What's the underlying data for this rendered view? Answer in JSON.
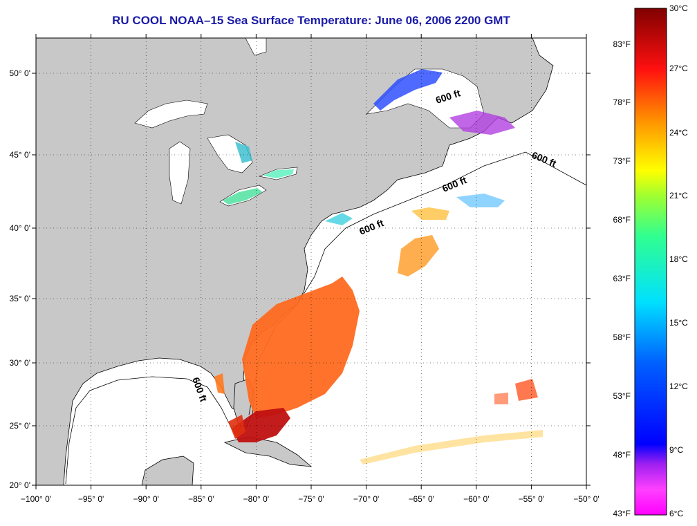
{
  "title": "RU COOL  NOAA–15  Sea Surface Temperature:  June 06, 2006 2200 GMT",
  "map": {
    "lon_ticks": [
      "−100° 0'",
      "−95° 0'",
      "−90° 0'",
      "−85° 0'",
      "−80° 0'",
      "−75° 0'",
      "−70° 0'",
      "−65° 0'",
      "−60° 0'",
      "−55° 0'",
      "−50° 0'"
    ],
    "lat_ticks": [
      "20° 0'",
      "25° 0'",
      "30° 0'",
      "35° 0'",
      "40° 0'",
      "45° 0'",
      "50° 0'"
    ],
    "lon_values": [
      -100,
      -95,
      -90,
      -85,
      -80,
      -75,
      -70,
      -65,
      -60,
      -55,
      -50
    ],
    "lat_values": [
      20,
      25,
      30,
      35,
      40,
      45,
      50
    ],
    "isobath_labels": [
      "600 ft",
      "600 ft",
      "600 ft",
      "600 ft",
      "600 ft"
    ],
    "land_color": "#c8c8c8",
    "ocean_color": "#ffffff"
  },
  "colorbar": {
    "celsius_ticks": [
      "30°C",
      "27°C",
      "24°C",
      "21°C",
      "18°C",
      "15°C",
      "12°C",
      "9°C",
      "6°C"
    ],
    "fahrenheit_ticks": [
      "83°F",
      "78°F",
      "73°F",
      "68°F",
      "63°F",
      "58°F",
      "53°F",
      "48°F",
      "43°F"
    ],
    "colors": [
      "#ff00ff",
      "#8000ff",
      "#0000ff",
      "#0080ff",
      "#00ffff",
      "#00ff80",
      "#80ff00",
      "#ffff00",
      "#ffa000",
      "#ff5000",
      "#ff0000",
      "#800000"
    ]
  }
}
